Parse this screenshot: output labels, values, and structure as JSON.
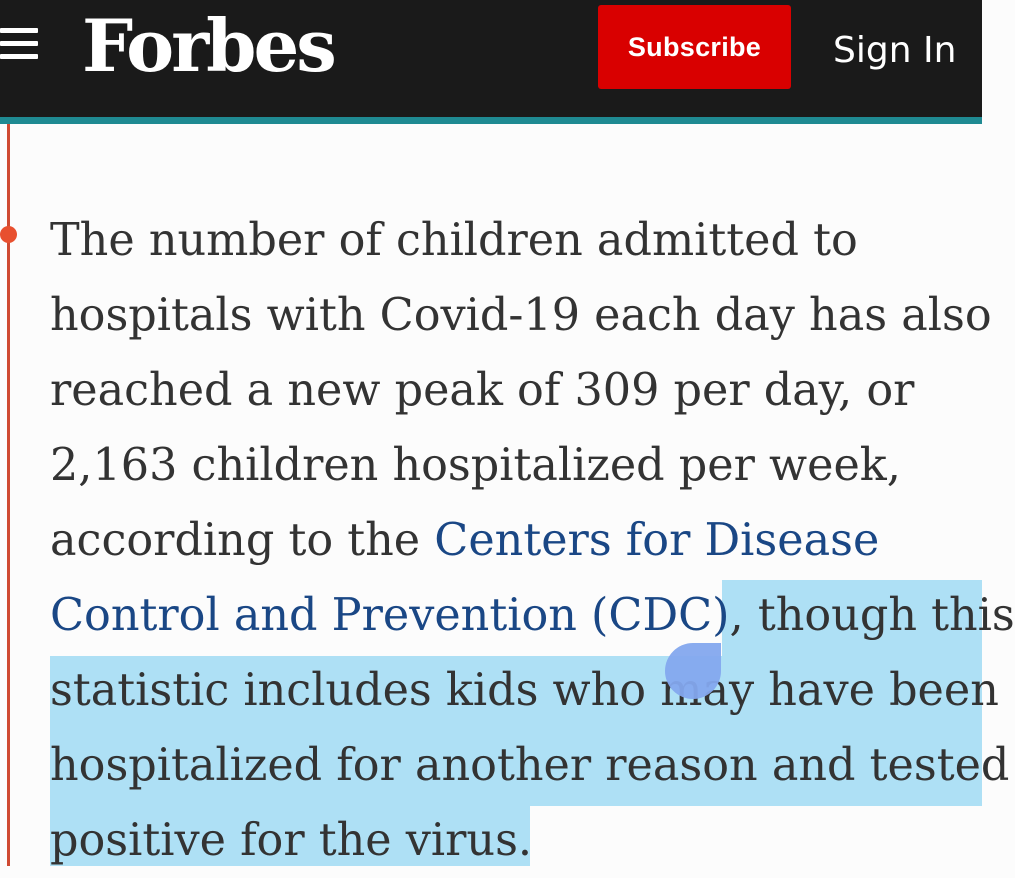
{
  "header": {
    "logo": "Forbes",
    "subscribe_label": "Subscribe",
    "signin_label": "Sign In"
  },
  "article": {
    "lines": [
      "The number of children admitted to",
      "hospitals with Covid-19 each day has also",
      "reached a new peak of 309 per day, or",
      "2,163 children hospitalized per week,"
    ],
    "line5_text": "according to the ",
    "link_part1": "Centers for Disease",
    "link_part2": "Control and Prevention (CDC)",
    "comma": ",",
    "selected_line6": " though this",
    "selected_line7": "statistic includes kids who may have been",
    "selected_line8": "hospitalized for another reason and tested",
    "selected_line9": "positive for the virus."
  },
  "colors": {
    "header_bg": "#1a1a1a",
    "subscribe_bg": "#d90000",
    "link": "#1a4785",
    "selection": "#aee0f5",
    "timeline": "#cf4a32"
  }
}
